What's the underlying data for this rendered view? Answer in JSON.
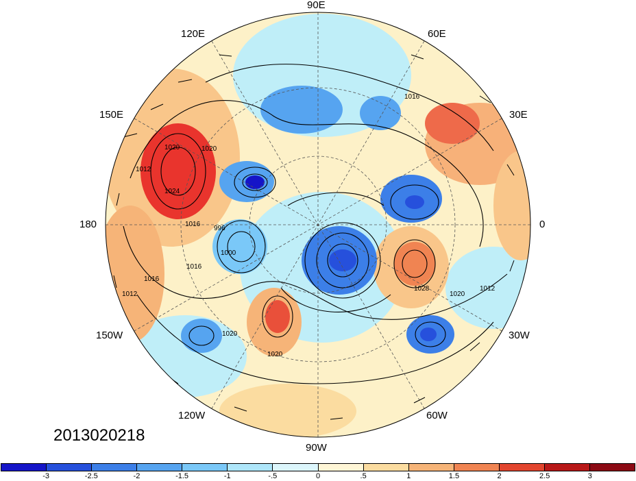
{
  "map": {
    "projection": "north-polar-stereographic",
    "longitude_labels": [
      "90E",
      "60E",
      "30E",
      "0",
      "30W",
      "60W",
      "90W",
      "120W",
      "150W",
      "180",
      "150E",
      "120E"
    ],
    "contour_labels": [
      "1016",
      "1020",
      "1024",
      "1012",
      "1016",
      "996",
      "1000",
      "1016",
      "1020",
      "1016",
      "1020",
      "1028",
      "1020",
      "1012",
      "1012",
      "1020"
    ],
    "colors": {
      "background": "#fdf1c8",
      "positive": "#e9342d",
      "negative": "#2c6fde",
      "ocean": "#c6f3f8"
    }
  },
  "date_stamp": "2013020218",
  "colorbar": {
    "tick_labels": [
      "-3",
      "-2.5",
      "-2",
      "-1.5",
      "-1",
      "-.5",
      "0",
      ".5",
      "1",
      "1.5",
      "2",
      "2.5",
      "3"
    ],
    "colors": [
      "#1515c8",
      "#2650dc",
      "#3c7fe8",
      "#56a4f0",
      "#7ac8f8",
      "#aee6fa",
      "#dcf6fc",
      "#fff6d6",
      "#fbdca0",
      "#f6b478",
      "#f08452",
      "#e2452e",
      "#b81818",
      "#8c0a14"
    ]
  }
}
